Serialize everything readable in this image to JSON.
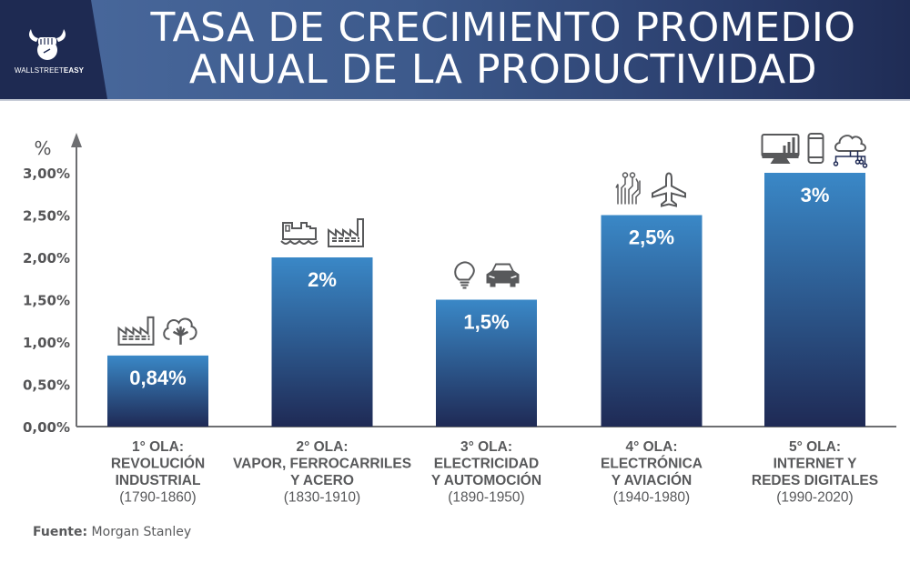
{
  "header": {
    "title_line1": "TASA DE CRECIMIENTO PROMEDIO",
    "title_line2": "ANUAL DE LA PRODUCTIVIDAD",
    "logo": {
      "icon": "bull-fist-icon",
      "text_regular": "WALLSTREET",
      "text_bold": "EASY"
    }
  },
  "source": {
    "label": "Fuente:",
    "value": "Morgan Stanley"
  },
  "colors": {
    "header_dark": "#1e2a52",
    "header_light": "#4a6a9e",
    "bar_top": "#3a88c7",
    "bar_bottom": "#1f2a55",
    "text": "#58595b",
    "axis": "#6d6e71"
  },
  "chart_data": {
    "type": "bar",
    "title": "TASA DE CRECIMIENTO PROMEDIO ANUAL DE LA PRODUCTIVIDAD",
    "xlabel": "",
    "ylabel": "%",
    "ylim": [
      0,
      3
    ],
    "yticks": [
      0,
      0.5,
      1,
      1.5,
      2,
      2.5,
      3
    ],
    "ytick_labels": [
      "0,00%",
      "0,50%",
      "1,00%",
      "1,50%",
      "2,00%",
      "2,50%",
      "3,00%"
    ],
    "grid": false,
    "categories": [
      {
        "wave": "1° OLA:",
        "name_lines": [
          "REVOLUCIÓN",
          "INDUSTRIAL"
        ],
        "period": "(1790-1860)",
        "icons": [
          "factory-icon",
          "cotton-icon"
        ]
      },
      {
        "wave": "2° OLA:",
        "name_lines": [
          "VAPOR, FERROCARRILES",
          "Y ACERO"
        ],
        "period": "(1830-1910)",
        "icons": [
          "locomotive-icon",
          "factory-icon"
        ]
      },
      {
        "wave": "3° OLA:",
        "name_lines": [
          "ELECTRICIDAD",
          "Y AUTOMOCIÓN"
        ],
        "period": "(1890-1950)",
        "icons": [
          "lightbulb-icon",
          "car-icon"
        ]
      },
      {
        "wave": "4° OLA:",
        "name_lines": [
          "ELECTRÓNICA",
          "Y AVIACIÓN"
        ],
        "period": "(1940-1980)",
        "icons": [
          "circuit-icon",
          "airplane-icon"
        ]
      },
      {
        "wave": "5° OLA:",
        "name_lines": [
          "INTERNET Y",
          "REDES DIGITALES"
        ],
        "period": "(1990-2020)",
        "icons": [
          "monitor-chart-icon",
          "smartphone-icon",
          "cloud-network-icon"
        ]
      }
    ],
    "values": [
      0.84,
      2,
      1.5,
      2.5,
      3
    ],
    "value_labels": [
      "0,84%",
      "2%",
      "1,5%",
      "2,5%",
      "3%"
    ]
  }
}
